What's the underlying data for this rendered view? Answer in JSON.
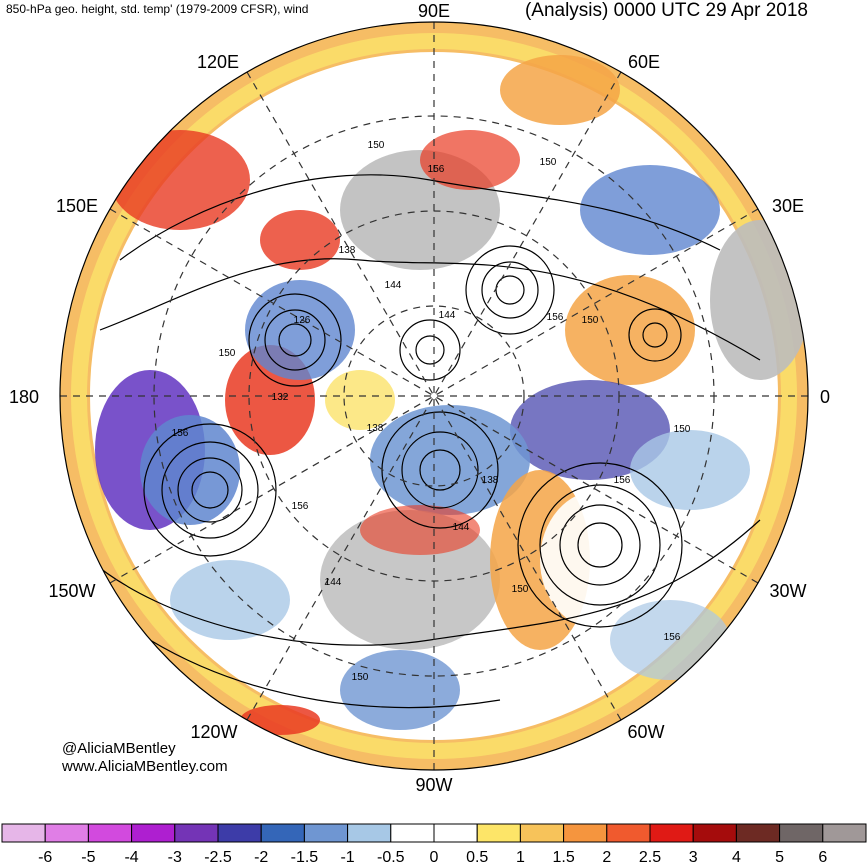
{
  "header": {
    "left_title": "850-hPa geo. height, std. temp' (1979-2009 CFSR), wind",
    "right_title": "(Analysis) 0000 UTC 29 Apr 2018"
  },
  "credits": {
    "handle": "@AliciaMBentley",
    "website": "www.AliciaMBentley.com"
  },
  "map": {
    "projection": "north-polar-stereographic",
    "longitude_labels": {
      "top": "90E",
      "upper_left": "120E",
      "upper_right": "60E",
      "left_upper": "150E",
      "right_upper": "30E",
      "left": "180",
      "right": "0",
      "left_lower": "150W",
      "right_lower": "30W",
      "lower_left": "120W",
      "lower_right": "60W",
      "bottom": "90W"
    },
    "contour_labels": [
      "150",
      "156",
      "150",
      "138",
      "144",
      "144",
      "126",
      "150",
      "132",
      "138",
      "138",
      "156",
      "144",
      "150",
      "156",
      "156",
      "150",
      "156",
      "144",
      "150",
      "156",
      "150"
    ],
    "colors": {
      "cold_strong": "#6a3fc4",
      "cold": "#5f86cf",
      "cold_light": "#a9c8e6",
      "neutral": "#ffffff",
      "warm_light": "#fbe26a",
      "warm": "#f4a446",
      "warm_strong": "#e93a22",
      "land_gray": "#bdbdbd"
    }
  },
  "colorbar": {
    "labels": [
      "-6",
      "-5",
      "-4",
      "-3",
      "-2.5",
      "-2",
      "-1.5",
      "-1",
      "-0.5",
      "0",
      "0.5",
      "1",
      "1.5",
      "2",
      "2.5",
      "3",
      "4",
      "5",
      "6"
    ],
    "colors": [
      "#e6b6e8",
      "#e07ee6",
      "#d24ade",
      "#ae1fd0",
      "#7434b6",
      "#3d3ca8",
      "#3466b8",
      "#6f96d2",
      "#a7c8e6",
      "#ffffff",
      "#ffffff",
      "#fde568",
      "#f7c35a",
      "#f5953e",
      "#f05a2e",
      "#e01a15",
      "#a50c0c",
      "#6d2a23",
      "#6f6666",
      "#a09898"
    ]
  }
}
